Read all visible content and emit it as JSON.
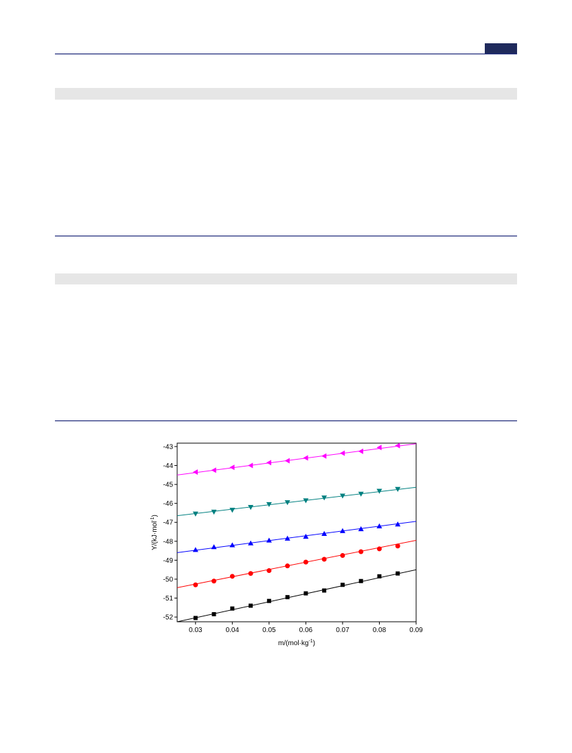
{
  "chart_data": {
    "type": "scatter",
    "x_label": {
      "main": "m/(mol·kg",
      "sup": "-1",
      "end": ")"
    },
    "y_label": {
      "main": "Y/(kJ·mol",
      "sup": "-1",
      "end": ")"
    },
    "x": [
      0.03,
      0.035,
      0.04,
      0.045,
      0.05,
      0.055,
      0.06,
      0.065,
      0.07,
      0.075,
      0.08,
      0.085
    ],
    "xlim": [
      0.025,
      0.09
    ],
    "ylim": [
      -52.25,
      -42.82
    ],
    "xticks": [
      0.03,
      0.04,
      0.05,
      0.06,
      0.07,
      0.08,
      0.09
    ],
    "yticks": [
      -52,
      -51,
      -50,
      -49,
      -48,
      -47,
      -46,
      -45,
      -44,
      -43
    ],
    "fit_x": [
      0.025,
      0.09
    ],
    "series": [
      {
        "color": "#000000",
        "marker": "square",
        "values": [
          -52.05,
          -51.85,
          -51.55,
          -51.4,
          -51.15,
          -50.95,
          -50.75,
          -50.6,
          -50.3,
          -50.1,
          -49.85,
          -49.7
        ],
        "fit": [
          -52.25,
          -49.5
        ]
      },
      {
        "color": "#ff0000",
        "marker": "circle",
        "values": [
          -50.3,
          -50.1,
          -49.85,
          -49.7,
          -49.55,
          -49.3,
          -49.1,
          -48.95,
          -48.75,
          -48.55,
          -48.4,
          -48.25
        ],
        "fit": [
          -50.45,
          -47.95
        ]
      },
      {
        "color": "#0000ff",
        "marker": "triangle-up",
        "values": [
          -48.45,
          -48.3,
          -48.2,
          -48.1,
          -47.95,
          -47.85,
          -47.75,
          -47.6,
          -47.45,
          -47.35,
          -47.2,
          -47.1
        ],
        "fit": [
          -48.6,
          -46.95
        ]
      },
      {
        "color": "#008080",
        "marker": "triangle-down",
        "values": [
          -46.55,
          -46.45,
          -46.35,
          -46.2,
          -46.05,
          -45.95,
          -45.85,
          -45.7,
          -45.6,
          -45.5,
          -45.35,
          -45.25
        ],
        "fit": [
          -46.65,
          -45.15
        ]
      },
      {
        "color": "#ff00ff",
        "marker": "triangle-left",
        "values": [
          -44.35,
          -44.25,
          -44.1,
          -44.0,
          -43.85,
          -43.75,
          -43.6,
          -43.5,
          -43.35,
          -43.25,
          -43.05,
          -42.95
        ],
        "fit": [
          -44.5,
          -42.85
        ]
      }
    ]
  }
}
